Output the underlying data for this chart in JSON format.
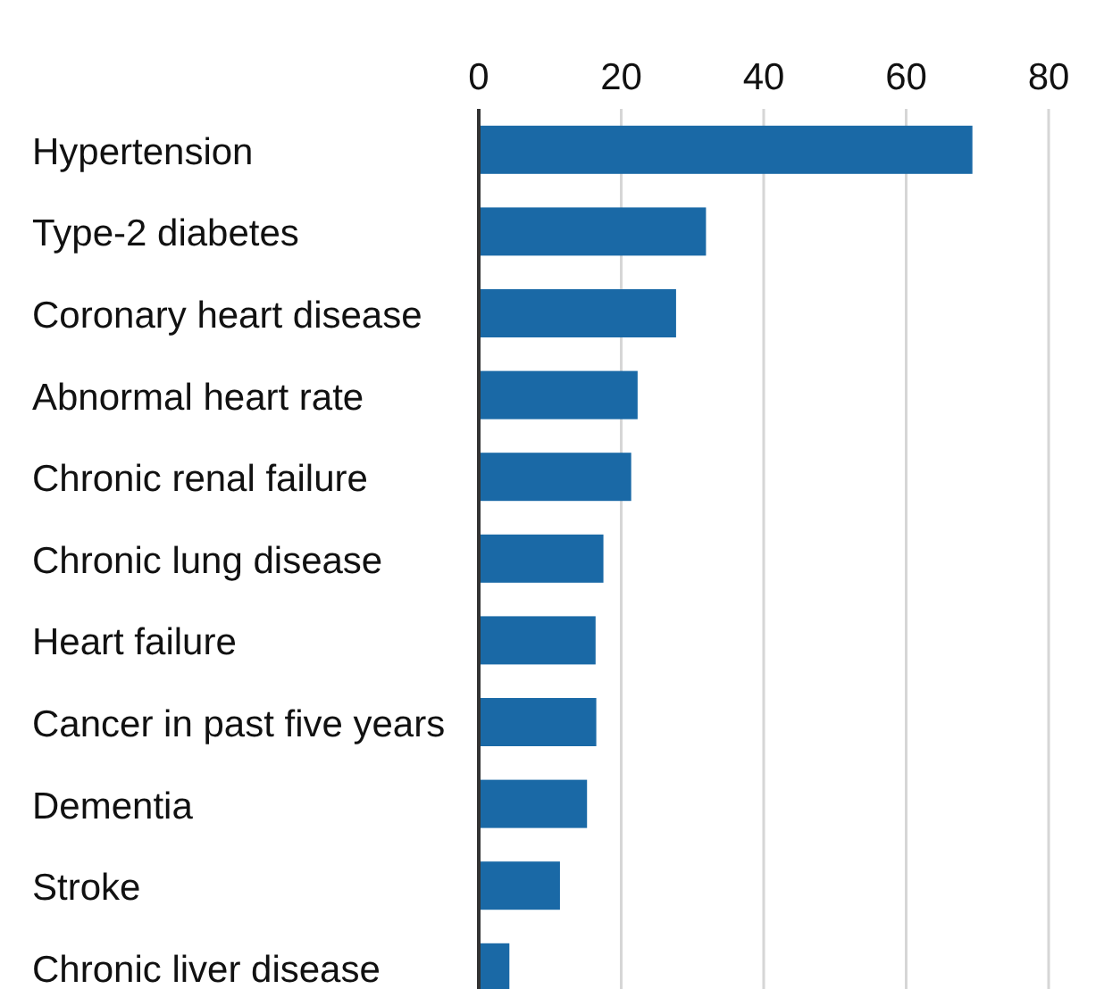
{
  "chart_data": {
    "type": "bar",
    "orientation": "horizontal",
    "categories": [
      "Hypertension",
      "Type-2 diabetes",
      "Coronary heart disease",
      "Abnormal heart rate",
      "Chronic renal failure",
      "Chronic lung disease",
      "Heart failure",
      "Cancer in past five years",
      "Dementia",
      "Stroke",
      "Chronic liver disease"
    ],
    "values": [
      69.3,
      31.9,
      27.7,
      22.3,
      21.4,
      17.5,
      16.4,
      16.5,
      15.2,
      11.4,
      4.3
    ],
    "color": "#1a69a6",
    "xlim": [
      0,
      80
    ],
    "xticks": [
      0,
      20,
      40,
      60,
      80
    ],
    "grid": "x"
  }
}
